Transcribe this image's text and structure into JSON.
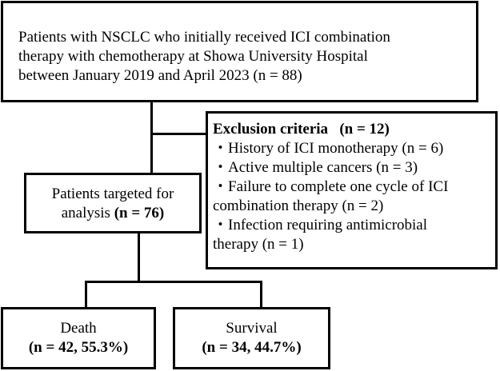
{
  "top_box": {
    "line1": "Patients with NSCLC who initially received ICI combination",
    "line2": "therapy with chemotherapy at Showa University Hospital",
    "line3": "between January 2019 and April 2023 (n = 88)"
  },
  "exclusion": {
    "title": "Exclusion criteria",
    "count": "(n = 12)",
    "items": [
      {
        "line1": "・History of ICI monotherapy (n = 6)",
        "line2": ""
      },
      {
        "line1": "・Active multiple cancers (n = 3)",
        "line2": ""
      },
      {
        "line1": "・Failure to complete one cycle of ICI",
        "line2": "combination therapy (n = 2)"
      },
      {
        "line1": "・Infection requiring antimicrobial",
        "line2": "therapy (n = 1)"
      }
    ]
  },
  "analysis_box": {
    "line1": "Patients targeted for",
    "line2_text": "analysis ",
    "line2_count": "(n = 76)"
  },
  "outcomes": {
    "death": {
      "label": "Death",
      "count": "(n = 42, 55.3%)"
    },
    "survival": {
      "label": "Survival",
      "count": "(n = 34, 44.7%)"
    }
  }
}
